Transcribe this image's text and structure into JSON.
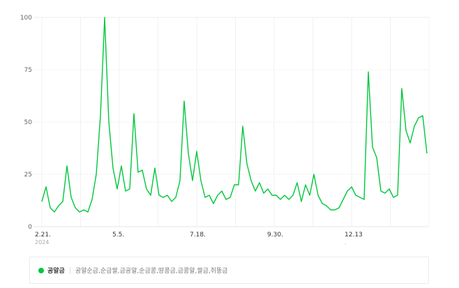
{
  "chart_data": {
    "type": "line",
    "title": "",
    "xlabel": "",
    "ylabel": "",
    "ylim": [
      0,
      100
    ],
    "yticks": [
      "0",
      "25",
      "50",
      "75",
      "100"
    ],
    "xticks": [
      {
        "date": "2024-02-21",
        "label": "2.21.",
        "sub": "2024"
      },
      {
        "date": "2024-05-05",
        "label": "5.5.",
        "sub": ""
      },
      {
        "date": "2024-07-18",
        "label": "7.18.",
        "sub": ""
      },
      {
        "date": "2024-09-30",
        "label": "9.30.",
        "sub": ""
      },
      {
        "date": "2024-12-13",
        "label": "12.13",
        "sub": "."
      }
    ],
    "grid": true,
    "color": "#00c73c",
    "legend_placement": "bottom",
    "series": [
      {
        "name": "공알금",
        "dates": [
          "2024-02-21",
          "2024-02-25",
          "2024-02-29",
          "2024-03-04",
          "2024-03-08",
          "2024-03-12",
          "2024-03-16",
          "2024-03-20",
          "2024-03-24",
          "2024-03-28",
          "2024-04-01",
          "2024-04-05",
          "2024-04-09",
          "2024-04-13",
          "2024-04-17",
          "2024-04-21",
          "2024-04-25",
          "2024-04-29",
          "2024-05-03",
          "2024-05-07",
          "2024-05-11",
          "2024-05-15",
          "2024-05-19",
          "2024-05-23",
          "2024-05-27",
          "2024-05-31",
          "2024-06-04",
          "2024-06-08",
          "2024-06-12",
          "2024-06-16",
          "2024-06-20",
          "2024-06-24",
          "2024-06-28",
          "2024-07-02",
          "2024-07-06",
          "2024-07-10",
          "2024-07-14",
          "2024-07-18",
          "2024-07-22",
          "2024-07-26",
          "2024-07-30",
          "2024-08-03",
          "2024-08-07",
          "2024-08-11",
          "2024-08-15",
          "2024-08-19",
          "2024-08-23",
          "2024-08-27",
          "2024-08-31",
          "2024-09-04",
          "2024-09-08",
          "2024-09-12",
          "2024-09-16",
          "2024-09-20",
          "2024-09-24",
          "2024-09-28",
          "2024-10-02",
          "2024-10-06",
          "2024-10-10",
          "2024-10-14",
          "2024-10-18",
          "2024-10-22",
          "2024-10-26",
          "2024-10-30",
          "2024-11-03",
          "2024-11-07",
          "2024-11-11",
          "2024-11-15",
          "2024-11-19",
          "2024-11-23",
          "2024-11-27",
          "2024-12-01",
          "2024-12-05",
          "2024-12-09",
          "2024-12-13",
          "2024-12-17",
          "2024-12-21",
          "2024-12-25",
          "2024-12-29",
          "2025-01-02",
          "2025-01-06",
          "2025-01-10",
          "2025-01-14",
          "2025-01-18",
          "2025-01-22",
          "2025-01-26",
          "2025-01-30",
          "2025-02-03",
          "2025-02-07",
          "2025-02-11",
          "2025-02-15",
          "2025-02-19",
          "2025-02-23"
        ],
        "values": [
          12,
          19,
          9,
          7,
          10,
          12,
          29,
          14,
          9,
          7,
          8,
          7,
          13,
          25,
          53,
          100,
          50,
          28,
          18,
          29,
          17,
          18,
          54,
          26,
          27,
          18,
          15,
          28,
          15,
          14,
          15,
          12,
          14,
          22,
          60,
          35,
          22,
          36,
          22,
          14,
          15,
          11,
          15,
          17,
          13,
          14,
          20,
          20,
          48,
          30,
          22,
          17,
          21,
          16,
          18,
          15,
          15,
          13,
          15,
          13,
          15,
          21,
          12,
          20,
          15,
          25,
          15,
          11,
          10,
          8,
          8,
          9,
          13,
          17,
          19,
          15,
          14,
          13,
          74,
          38,
          33,
          17,
          16,
          18,
          14,
          15,
          66,
          46,
          40,
          48,
          52,
          53,
          35
        ]
      }
    ]
  },
  "legend": {
    "name": "공알금",
    "keywords": "공알순금,순금쌀,금공알,순금콩,땅콩금,금콩알,쌀금,쥐똥금"
  }
}
